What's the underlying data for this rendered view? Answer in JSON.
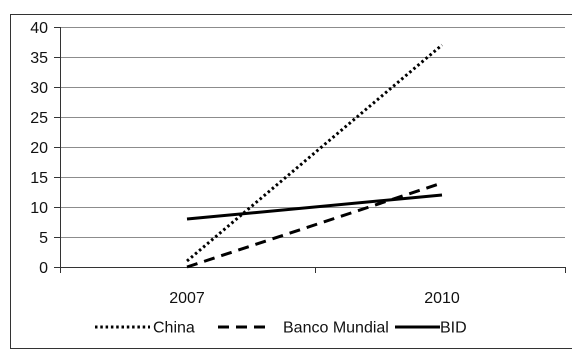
{
  "chart_data": {
    "type": "line",
    "x": [
      "2007",
      "2010"
    ],
    "series": [
      {
        "name": "China",
        "values": [
          1,
          37
        ],
        "style": "dotted",
        "color": "#000000"
      },
      {
        "name": "Banco Mundial",
        "values": [
          0,
          14
        ],
        "style": "dashed",
        "color": "#000000"
      },
      {
        "name": "BID",
        "values": [
          8,
          12
        ],
        "style": "solid",
        "color": "#000000"
      }
    ],
    "title": "",
    "xlabel": "",
    "ylabel": "",
    "ylim": [
      0,
      40
    ],
    "yticks": [
      "0",
      "5",
      "10",
      "15",
      "20",
      "25",
      "30",
      "35",
      "40"
    ],
    "grid": "horizontal",
    "legend": "bottom"
  }
}
